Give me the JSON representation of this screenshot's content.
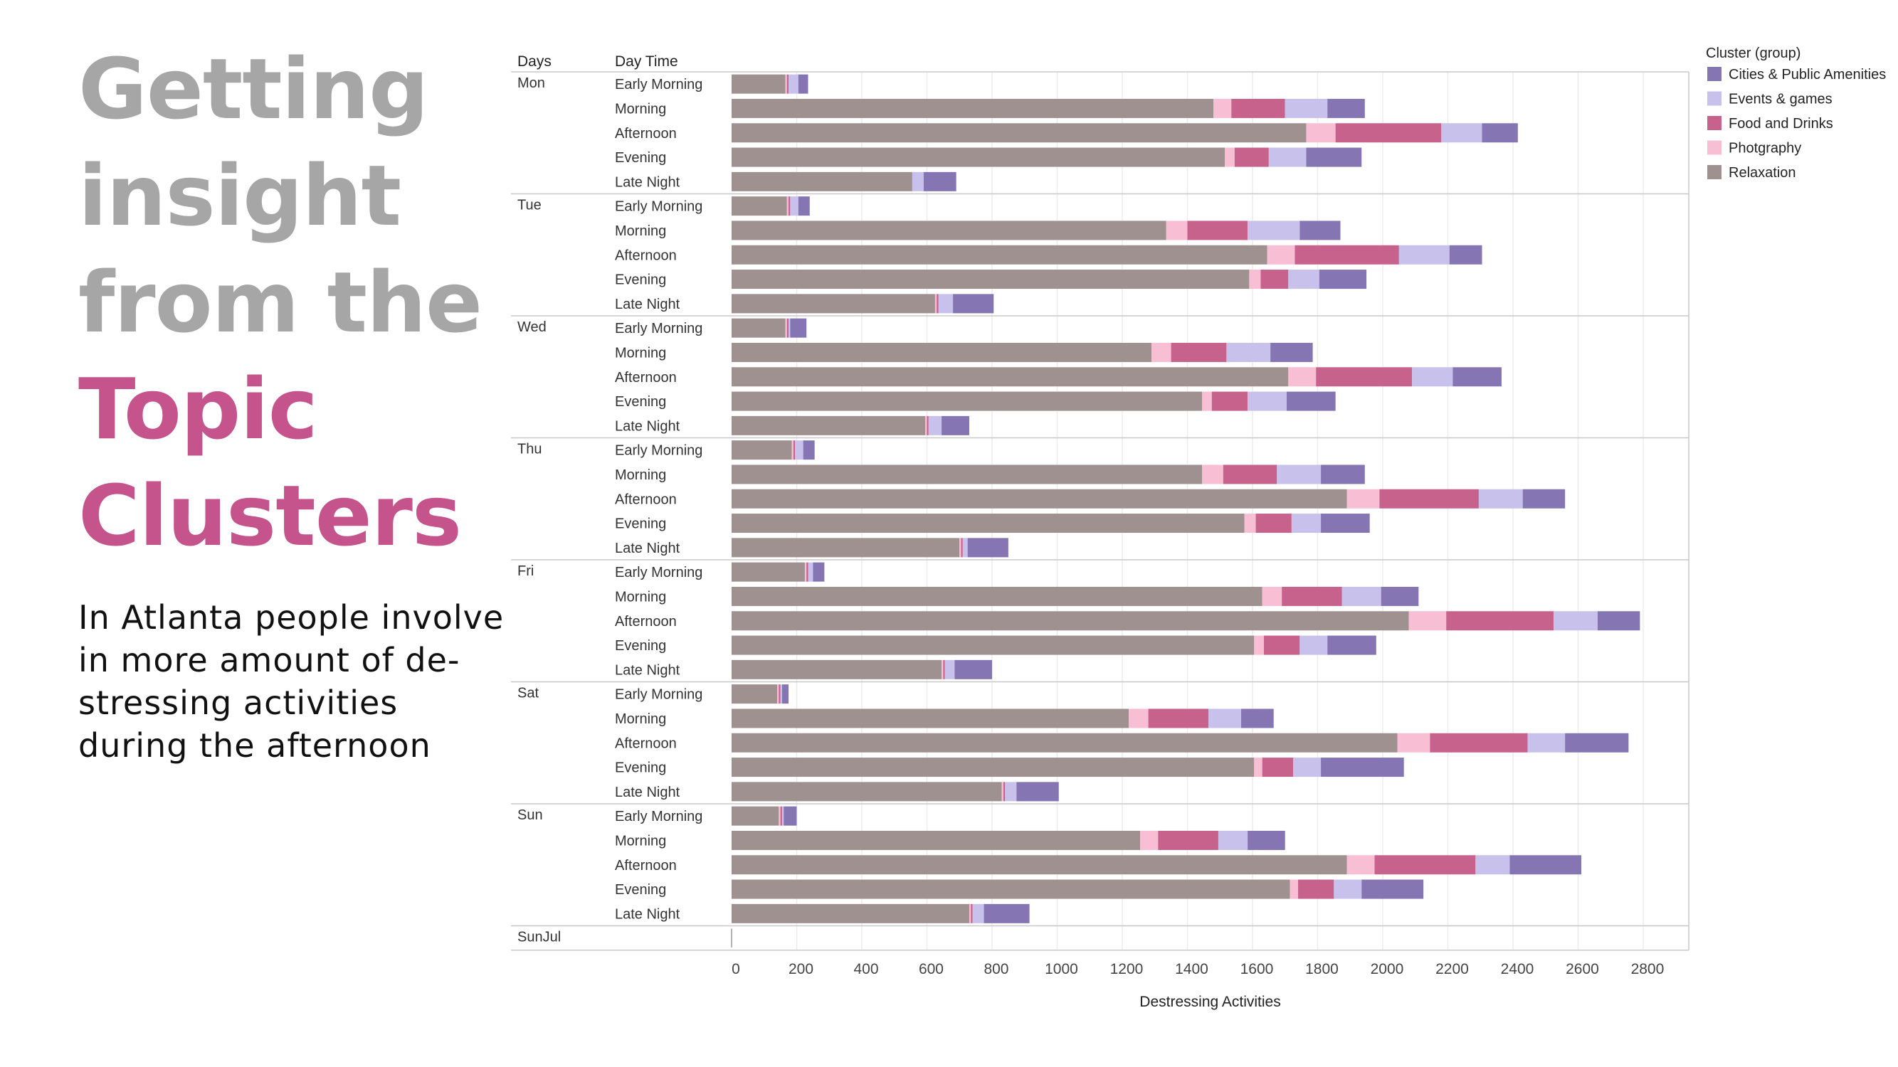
{
  "headline": {
    "line1": "Getting",
    "line2": "insight",
    "line3": "from the",
    "line4": "Topic",
    "line5": "Clusters"
  },
  "subtitle": "In Atlanta people involve in more amount of de-stressing activities during the afternoon",
  "colors": {
    "headline_gray": "#a6a6a6",
    "headline_pink": "#c5548c"
  },
  "chart_data": {
    "type": "bar",
    "orientation": "horizontal",
    "stacked": true,
    "row_headers": [
      "Days",
      "Day Time"
    ],
    "xlabel": "Destressing Activities",
    "xlim": [
      0,
      2940
    ],
    "xticks": [
      0,
      200,
      400,
      600,
      800,
      1000,
      1200,
      1400,
      1600,
      1800,
      2000,
      2200,
      2400,
      2600,
      2800
    ],
    "grid": true,
    "legend": {
      "title": "Cluster (group)",
      "position": "top-right",
      "items": [
        {
          "name": "Cities & Public Amenities",
          "color": "#8576b3"
        },
        {
          "name": "Events & games",
          "color": "#c8c1ec"
        },
        {
          "name": "Food and Drinks",
          "color": "#c7628c"
        },
        {
          "name": "Photgraphy",
          "color": "#f8bfd4"
        },
        {
          "name": "Relaxation",
          "color": "#9e918f"
        }
      ]
    },
    "stack_order": [
      "Relaxation",
      "Photgraphy",
      "Food and Drinks",
      "Events & games",
      "Cities & Public Amenities"
    ],
    "colors": {
      "Relaxation": "#9e918f",
      "Photgraphy": "#f8bfd4",
      "Food and Drinks": "#c7628c",
      "Events & games": "#c8c1ec",
      "Cities & Public Amenities": "#8576b3"
    },
    "groups": [
      {
        "day": "Mon",
        "rows": [
          {
            "label": "Early Morning",
            "values": [
              165,
              5,
              5,
              30,
              30
            ]
          },
          {
            "label": "Morning",
            "values": [
              1480,
              55,
              165,
              130,
              115
            ]
          },
          {
            "label": "Afternoon",
            "values": [
              1765,
              90,
              325,
              125,
              110
            ]
          },
          {
            "label": "Evening",
            "values": [
              1515,
              30,
              105,
              115,
              170
            ]
          },
          {
            "label": "Late Night",
            "values": [
              555,
              0,
              0,
              35,
              100
            ]
          }
        ]
      },
      {
        "day": "Tue",
        "rows": [
          {
            "label": "Early Morning",
            "values": [
              170,
              5,
              5,
              25,
              35
            ]
          },
          {
            "label": "Morning",
            "values": [
              1335,
              65,
              185,
              160,
              125
            ]
          },
          {
            "label": "Afternoon",
            "values": [
              1645,
              85,
              320,
              155,
              100
            ]
          },
          {
            "label": "Evening",
            "values": [
              1590,
              35,
              85,
              95,
              145
            ]
          },
          {
            "label": "Late Night",
            "values": [
              625,
              5,
              5,
              45,
              125
            ]
          }
        ]
      },
      {
        "day": "Wed",
        "rows": [
          {
            "label": "Early Morning",
            "values": [
              165,
              5,
              5,
              5,
              50
            ]
          },
          {
            "label": "Morning",
            "values": [
              1290,
              60,
              170,
              135,
              130
            ]
          },
          {
            "label": "Afternoon",
            "values": [
              1710,
              85,
              295,
              125,
              150
            ]
          },
          {
            "label": "Evening",
            "values": [
              1445,
              30,
              110,
              120,
              150
            ]
          },
          {
            "label": "Late Night",
            "values": [
              595,
              5,
              5,
              40,
              85
            ]
          }
        ]
      },
      {
        "day": "Thu",
        "rows": [
          {
            "label": "Early Morning",
            "values": [
              185,
              5,
              5,
              25,
              35
            ]
          },
          {
            "label": "Morning",
            "values": [
              1445,
              65,
              165,
              135,
              135
            ]
          },
          {
            "label": "Afternoon",
            "values": [
              1890,
              100,
              305,
              135,
              130
            ]
          },
          {
            "label": "Evening",
            "values": [
              1575,
              35,
              110,
              90,
              150
            ]
          },
          {
            "label": "Late Night",
            "values": [
              700,
              5,
              5,
              15,
              125
            ]
          }
        ]
      },
      {
        "day": "Fri",
        "rows": [
          {
            "label": "Early Morning",
            "values": [
              225,
              5,
              5,
              15,
              35
            ]
          },
          {
            "label": "Morning",
            "values": [
              1630,
              60,
              185,
              120,
              115
            ]
          },
          {
            "label": "Afternoon",
            "values": [
              2080,
              115,
              330,
              135,
              130
            ]
          },
          {
            "label": "Evening",
            "values": [
              1605,
              30,
              110,
              85,
              150
            ]
          },
          {
            "label": "Late Night",
            "values": [
              645,
              5,
              5,
              30,
              115
            ]
          }
        ]
      },
      {
        "day": "Sat",
        "rows": [
          {
            "label": "Early Morning",
            "values": [
              140,
              5,
              5,
              5,
              20
            ]
          },
          {
            "label": "Morning",
            "values": [
              1220,
              60,
              185,
              100,
              100
            ]
          },
          {
            "label": "Afternoon",
            "values": [
              2045,
              100,
              300,
              115,
              195
            ]
          },
          {
            "label": "Evening",
            "values": [
              1605,
              25,
              95,
              85,
              255
            ]
          },
          {
            "label": "Late Night",
            "values": [
              830,
              5,
              5,
              35,
              130
            ]
          }
        ]
      },
      {
        "day": "Sun",
        "rows": [
          {
            "label": "Early Morning",
            "values": [
              145,
              5,
              5,
              5,
              40
            ]
          },
          {
            "label": "Morning",
            "values": [
              1255,
              55,
              185,
              90,
              115
            ]
          },
          {
            "label": "Afternoon",
            "values": [
              1890,
              85,
              310,
              105,
              220
            ]
          },
          {
            "label": "Evening",
            "values": [
              1715,
              25,
              110,
              85,
              190
            ]
          },
          {
            "label": "Late Night",
            "values": [
              730,
              5,
              5,
              35,
              140
            ]
          }
        ]
      },
      {
        "day": "SunJul",
        "rows": []
      }
    ]
  }
}
